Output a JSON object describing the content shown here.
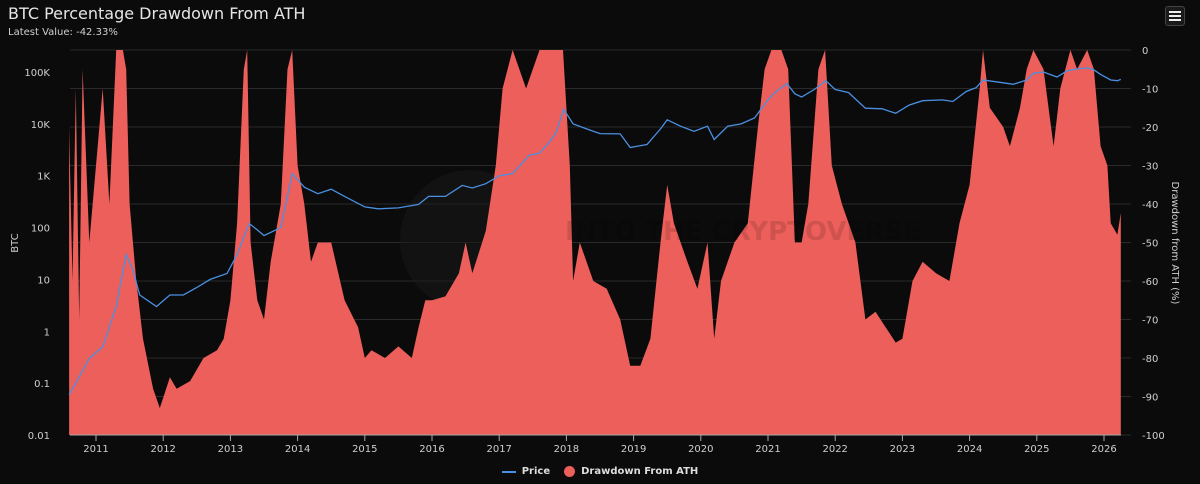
{
  "header": {
    "title": "BTC Percentage Drawdown From ATH",
    "subtitle": "Latest Value: -42.33%",
    "menu_icon": "hamburger-menu-icon"
  },
  "watermark": "INTO THE CRYPTOVERSE",
  "chart_data": {
    "type": "area",
    "title": "BTC Percentage Drawdown From ATH",
    "xlabel": "",
    "ylabel_left": "BTC",
    "ylabel_right": "Drawdown from ATH (%)",
    "x_range": [
      2010.6,
      2026.25
    ],
    "x_ticks": [
      "2011",
      "2012",
      "2013",
      "2014",
      "2015",
      "2016",
      "2017",
      "2018",
      "2019",
      "2020",
      "2021",
      "2022",
      "2023",
      "2024",
      "2025",
      "2026"
    ],
    "y_left_scale": "log",
    "y_left_range": [
      0.01,
      100000
    ],
    "y_left_ticks": [
      "0.01",
      "0.1",
      "1",
      "10",
      "100",
      "1K",
      "10K",
      "100K"
    ],
    "y_right_range": [
      -100,
      0
    ],
    "y_right_ticks": [
      "0",
      "-10",
      "-20",
      "-30",
      "-40",
      "-50",
      "-60",
      "-70",
      "-80",
      "-90",
      "-100"
    ],
    "legend_position": "bottom-center",
    "colors": {
      "price": "#4a90e2",
      "drawdown": "#ec5f5b"
    },
    "series": [
      {
        "name": "Price",
        "axis": "left",
        "type": "line",
        "points": [
          [
            2010.6,
            0.06
          ],
          [
            2010.7,
            0.1
          ],
          [
            2010.9,
            0.3
          ],
          [
            2011.1,
            0.5
          ],
          [
            2011.3,
            3
          ],
          [
            2011.45,
            30
          ],
          [
            2011.55,
            15
          ],
          [
            2011.65,
            5
          ],
          [
            2011.9,
            3
          ],
          [
            2012.1,
            5
          ],
          [
            2012.3,
            5
          ],
          [
            2012.5,
            7
          ],
          [
            2012.7,
            10
          ],
          [
            2012.95,
            13
          ],
          [
            2013.1,
            30
          ],
          [
            2013.28,
            120
          ],
          [
            2013.4,
            90
          ],
          [
            2013.5,
            70
          ],
          [
            2013.75,
            100
          ],
          [
            2013.85,
            400
          ],
          [
            2013.92,
            1100
          ],
          [
            2014.1,
            600
          ],
          [
            2014.3,
            450
          ],
          [
            2014.5,
            550
          ],
          [
            2014.7,
            400
          ],
          [
            2015.0,
            250
          ],
          [
            2015.2,
            230
          ],
          [
            2015.5,
            240
          ],
          [
            2015.8,
            280
          ],
          [
            2015.95,
            400
          ],
          [
            2016.2,
            400
          ],
          [
            2016.45,
            650
          ],
          [
            2016.6,
            580
          ],
          [
            2016.8,
            700
          ],
          [
            2017.0,
            1000
          ],
          [
            2017.2,
            1100
          ],
          [
            2017.45,
            2500
          ],
          [
            2017.6,
            2700
          ],
          [
            2017.75,
            4500
          ],
          [
            2017.85,
            7000
          ],
          [
            2017.96,
            19000
          ],
          [
            2018.1,
            10000
          ],
          [
            2018.3,
            8000
          ],
          [
            2018.5,
            6500
          ],
          [
            2018.8,
            6400
          ],
          [
            2018.95,
            3500
          ],
          [
            2019.2,
            4000
          ],
          [
            2019.4,
            8000
          ],
          [
            2019.5,
            12000
          ],
          [
            2019.7,
            9000
          ],
          [
            2019.9,
            7200
          ],
          [
            2020.1,
            9000
          ],
          [
            2020.2,
            5000
          ],
          [
            2020.4,
            9000
          ],
          [
            2020.6,
            10000
          ],
          [
            2020.8,
            13000
          ],
          [
            2020.99,
            28000
          ],
          [
            2021.1,
            40000
          ],
          [
            2021.28,
            60000
          ],
          [
            2021.4,
            38000
          ],
          [
            2021.5,
            33000
          ],
          [
            2021.7,
            47000
          ],
          [
            2021.86,
            68000
          ],
          [
            2022.0,
            46000
          ],
          [
            2022.2,
            40000
          ],
          [
            2022.45,
            20000
          ],
          [
            2022.7,
            19500
          ],
          [
            2022.9,
            16000
          ],
          [
            2023.1,
            23000
          ],
          [
            2023.3,
            28000
          ],
          [
            2023.6,
            29000
          ],
          [
            2023.75,
            27000
          ],
          [
            2023.95,
            42000
          ],
          [
            2024.1,
            50000
          ],
          [
            2024.2,
            70000
          ],
          [
            2024.5,
            62000
          ],
          [
            2024.65,
            58000
          ],
          [
            2024.85,
            70000
          ],
          [
            2024.95,
            95000
          ],
          [
            2025.1,
            100000
          ],
          [
            2025.3,
            80000
          ],
          [
            2025.45,
            105000
          ],
          [
            2025.6,
            115000
          ],
          [
            2025.75,
            120000
          ],
          [
            2025.85,
            110000
          ],
          [
            2025.95,
            90000
          ],
          [
            2026.1,
            70000
          ],
          [
            2026.2,
            68000
          ],
          [
            2026.25,
            72000
          ]
        ]
      },
      {
        "name": "Drawdown From ATH",
        "axis": "right",
        "type": "area",
        "points": [
          [
            2010.6,
            -20
          ],
          [
            2010.65,
            -60
          ],
          [
            2010.7,
            -10
          ],
          [
            2010.75,
            -70
          ],
          [
            2010.8,
            -5
          ],
          [
            2010.9,
            -50
          ],
          [
            2011.0,
            -30
          ],
          [
            2011.1,
            -10
          ],
          [
            2011.2,
            -40
          ],
          [
            2011.3,
            0
          ],
          [
            2011.4,
            0
          ],
          [
            2011.45,
            -5
          ],
          [
            2011.5,
            -40
          ],
          [
            2011.6,
            -60
          ],
          [
            2011.7,
            -75
          ],
          [
            2011.85,
            -88
          ],
          [
            2011.95,
            -93
          ],
          [
            2012.1,
            -85
          ],
          [
            2012.2,
            -88
          ],
          [
            2012.4,
            -86
          ],
          [
            2012.6,
            -80
          ],
          [
            2012.8,
            -78
          ],
          [
            2012.9,
            -75
          ],
          [
            2013.0,
            -65
          ],
          [
            2013.1,
            -45
          ],
          [
            2013.2,
            -5
          ],
          [
            2013.25,
            0
          ],
          [
            2013.3,
            -50
          ],
          [
            2013.4,
            -65
          ],
          [
            2013.5,
            -70
          ],
          [
            2013.6,
            -55
          ],
          [
            2013.75,
            -40
          ],
          [
            2013.85,
            -5
          ],
          [
            2013.92,
            0
          ],
          [
            2014.0,
            -30
          ],
          [
            2014.1,
            -40
          ],
          [
            2014.2,
            -55
          ],
          [
            2014.3,
            -50
          ],
          [
            2014.5,
            -50
          ],
          [
            2014.7,
            -65
          ],
          [
            2014.9,
            -72
          ],
          [
            2015.0,
            -80
          ],
          [
            2015.1,
            -78
          ],
          [
            2015.3,
            -80
          ],
          [
            2015.5,
            -77
          ],
          [
            2015.7,
            -80
          ],
          [
            2015.8,
            -72
          ],
          [
            2015.9,
            -65
          ],
          [
            2016.0,
            -65
          ],
          [
            2016.2,
            -64
          ],
          [
            2016.4,
            -58
          ],
          [
            2016.5,
            -50
          ],
          [
            2016.6,
            -58
          ],
          [
            2016.8,
            -47
          ],
          [
            2016.95,
            -30
          ],
          [
            2017.05,
            -10
          ],
          [
            2017.2,
            0
          ],
          [
            2017.4,
            -10
          ],
          [
            2017.6,
            0
          ],
          [
            2017.8,
            0
          ],
          [
            2017.95,
            0
          ],
          [
            2018.05,
            -30
          ],
          [
            2018.1,
            -60
          ],
          [
            2018.2,
            -50
          ],
          [
            2018.4,
            -60
          ],
          [
            2018.6,
            -62
          ],
          [
            2018.8,
            -70
          ],
          [
            2018.95,
            -82
          ],
          [
            2019.1,
            -82
          ],
          [
            2019.25,
            -75
          ],
          [
            2019.4,
            -50
          ],
          [
            2019.5,
            -35
          ],
          [
            2019.6,
            -45
          ],
          [
            2019.8,
            -55
          ],
          [
            2019.95,
            -62
          ],
          [
            2020.1,
            -50
          ],
          [
            2020.2,
            -75
          ],
          [
            2020.3,
            -60
          ],
          [
            2020.5,
            -50
          ],
          [
            2020.7,
            -45
          ],
          [
            2020.85,
            -20
          ],
          [
            2020.95,
            -5
          ],
          [
            2021.05,
            0
          ],
          [
            2021.2,
            0
          ],
          [
            2021.3,
            -5
          ],
          [
            2021.4,
            -50
          ],
          [
            2021.5,
            -50
          ],
          [
            2021.6,
            -40
          ],
          [
            2021.75,
            -5
          ],
          [
            2021.85,
            0
          ],
          [
            2021.95,
            -30
          ],
          [
            2022.1,
            -40
          ],
          [
            2022.3,
            -50
          ],
          [
            2022.45,
            -70
          ],
          [
            2022.6,
            -68
          ],
          [
            2022.75,
            -72
          ],
          [
            2022.9,
            -76
          ],
          [
            2023.0,
            -75
          ],
          [
            2023.15,
            -60
          ],
          [
            2023.3,
            -55
          ],
          [
            2023.5,
            -58
          ],
          [
            2023.7,
            -60
          ],
          [
            2023.85,
            -45
          ],
          [
            2024.0,
            -35
          ],
          [
            2024.15,
            -10
          ],
          [
            2024.2,
            0
          ],
          [
            2024.3,
            -15
          ],
          [
            2024.5,
            -20
          ],
          [
            2024.6,
            -25
          ],
          [
            2024.75,
            -15
          ],
          [
            2024.85,
            -5
          ],
          [
            2024.95,
            0
          ],
          [
            2025.1,
            -5
          ],
          [
            2025.25,
            -25
          ],
          [
            2025.35,
            -10
          ],
          [
            2025.5,
            0
          ],
          [
            2025.6,
            -5
          ],
          [
            2025.75,
            0
          ],
          [
            2025.85,
            -5
          ],
          [
            2025.95,
            -25
          ],
          [
            2026.05,
            -30
          ],
          [
            2026.1,
            -45
          ],
          [
            2026.2,
            -48
          ],
          [
            2026.25,
            -42.33
          ]
        ]
      }
    ],
    "latest_value": -42.33
  },
  "legend": {
    "price": "Price",
    "drawdown": "Drawdown From ATH"
  }
}
